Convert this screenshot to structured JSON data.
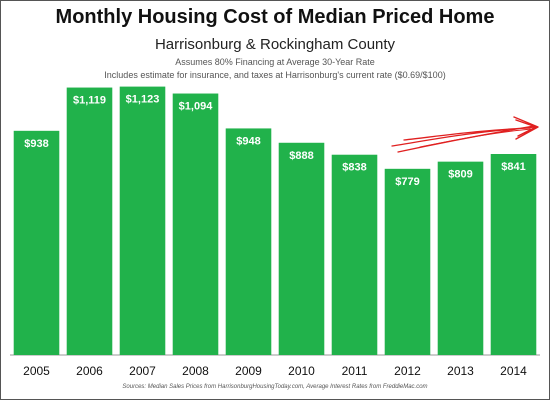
{
  "chart_data": {
    "type": "bar",
    "title": "Monthly Housing Cost of Median Priced Home",
    "subtitle": "Harrisonburg & Rockingham County",
    "notes": [
      "Assumes 80% Financing at Average 30-Year Rate",
      "Includes estimate for insurance, and taxes at Harrisonburg's current rate ($0.69/$100)"
    ],
    "source": "Sources: Median Sales Prices from HarrisonburgHousingToday.com,  Average Interest Rates from FreddieMac.com",
    "categories": [
      "2005",
      "2006",
      "2007",
      "2008",
      "2009",
      "2010",
      "2011",
      "2012",
      "2013",
      "2014"
    ],
    "values": [
      938,
      1119,
      1123,
      1094,
      948,
      888,
      838,
      779,
      809,
      841
    ],
    "data_labels": [
      "$938",
      "$1,119",
      "$1,123",
      "$1,094",
      "$948",
      "$888",
      "$838",
      "$779",
      "$809",
      "$841"
    ],
    "ylim": [
      0,
      1300
    ],
    "grid": false,
    "colors": {
      "bar": "#21b24b",
      "annotation_arrow": "#e02020"
    },
    "annotation": "upward-trend-arrow"
  }
}
